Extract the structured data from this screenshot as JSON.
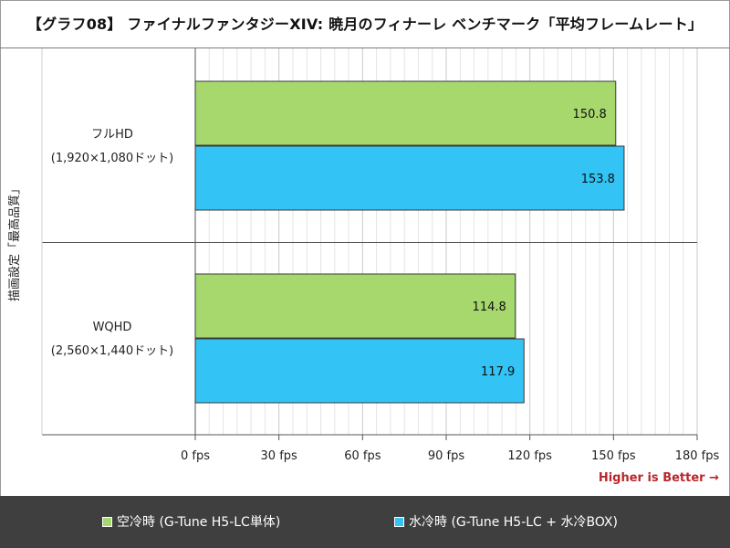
{
  "title": "【グラフ08】 ファイナルファンタジーXIV: 暁月のフィナーレ ベンチマーク「平均フレームレート」",
  "higher_is_better": "Higher is Better →",
  "colors": {
    "green": "#a6d86e",
    "blue": "#33c3f4",
    "grid": "#c9c9c9",
    "axis": "#555555"
  },
  "chart_data": {
    "type": "bar",
    "orientation": "horizontal",
    "title": "【グラフ08】 ファイナルファンタジーXIV: 暁月のフィナーレ ベンチマーク「平均フレームレート」",
    "ylabel": "描画設定「最高品質」",
    "xlabel": "",
    "xlim": [
      0,
      180
    ],
    "xticks": [
      0,
      30,
      60,
      90,
      120,
      150,
      180
    ],
    "xtick_labels": [
      "0 fps",
      "30 fps",
      "60 fps",
      "90 fps",
      "120 fps",
      "150 fps",
      "180 fps"
    ],
    "categories": [
      {
        "line1": "フルHD",
        "line2": "(1,920×1,080ドット)"
      },
      {
        "line1": "WQHD",
        "line2": "(2,560×1,440ドット)"
      }
    ],
    "series": [
      {
        "name": "空冷時 (G-Tune H5-LC単体)",
        "color": "#a6d86e",
        "values": [
          150.8,
          114.8
        ]
      },
      {
        "name": "水冷時 (G-Tune H5-LC + 水冷BOX)",
        "color": "#33c3f4",
        "values": [
          153.8,
          117.9
        ]
      }
    ]
  }
}
